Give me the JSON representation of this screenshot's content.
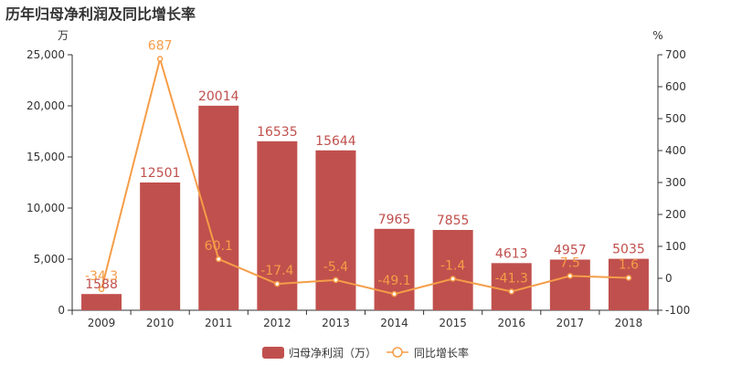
{
  "title": "历年归母净利润及同比增长率",
  "colors": {
    "bar": "#c0504d",
    "line": "#f59d48",
    "axis": "#333333",
    "grid": "#cccccc"
  },
  "chart_data": {
    "type": "bar",
    "title": "历年归母净利润及同比增长率",
    "categories": [
      "2009",
      "2010",
      "2011",
      "2012",
      "2013",
      "2014",
      "2015",
      "2016",
      "2017",
      "2018"
    ],
    "left_axis": {
      "unit": "万",
      "ylim": [
        0,
        25000
      ],
      "ticks": [
        "0",
        "5,000",
        "10,000",
        "15,000",
        "20,000",
        "25,000"
      ]
    },
    "right_axis": {
      "unit": "%",
      "ylim": [
        -100,
        700
      ],
      "ticks": [
        "-100",
        "0",
        "100",
        "200",
        "300",
        "400",
        "500",
        "600",
        "700"
      ]
    },
    "series": [
      {
        "name": "归母净利润（万）",
        "type": "bar",
        "axis": "left",
        "values": [
          1588,
          12501,
          20014,
          16535,
          15644,
          7965,
          7855,
          4613,
          4957,
          5035
        ],
        "labels": [
          "1588",
          "12501",
          "20014",
          "16535",
          "15644",
          "7965",
          "7855",
          "4613",
          "4957",
          "5035"
        ]
      },
      {
        "name": "同比增长率",
        "type": "line",
        "axis": "right",
        "values": [
          -34.3,
          687,
          60.1,
          -17.4,
          -5.4,
          -49.1,
          -1.4,
          -41.3,
          7.5,
          1.6
        ],
        "labels": [
          "-34.3",
          "687",
          "60.1",
          "-17.4",
          "-5.4",
          "-49.1",
          "-1.4",
          "-41.3",
          "7.5",
          "1.6"
        ]
      }
    ],
    "grid": false,
    "legend": "bottom-center"
  }
}
